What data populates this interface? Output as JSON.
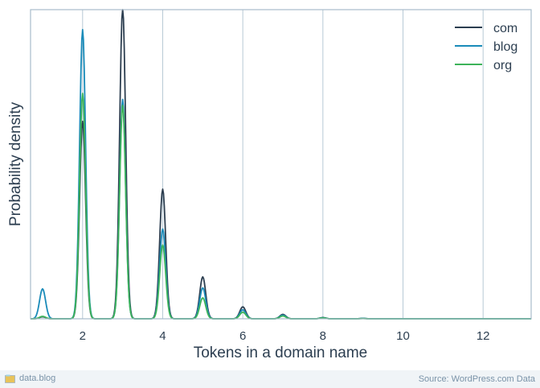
{
  "chart_data": {
    "type": "line",
    "title": "",
    "xlabel": "Tokens in a domain name",
    "ylabel": "Probability density",
    "xlim": [
      0.7,
      13.2
    ],
    "ylim": [
      0,
      1.55
    ],
    "xticks": [
      2,
      4,
      6,
      8,
      10,
      12
    ],
    "grid": "vertical",
    "legend": "top-right",
    "x_resolution": 0.02,
    "peak_width": 0.075,
    "series": [
      {
        "name": "com",
        "color": "#2c3e50",
        "peaks": [
          [
            1,
            0.01
          ],
          [
            2,
            0.99
          ],
          [
            3,
            1.56
          ],
          [
            4,
            0.65
          ],
          [
            5,
            0.21
          ],
          [
            6,
            0.06
          ],
          [
            7,
            0.022
          ],
          [
            8,
            0.006
          ],
          [
            9,
            0.002
          ]
        ]
      },
      {
        "name": "blog",
        "color": "#1a8bb9",
        "peaks": [
          [
            1,
            0.15
          ],
          [
            2,
            1.45
          ],
          [
            3,
            1.1
          ],
          [
            4,
            0.45
          ],
          [
            5,
            0.155
          ],
          [
            6,
            0.045
          ],
          [
            7,
            0.018
          ],
          [
            8,
            0.005
          ],
          [
            9,
            0.002
          ]
        ]
      },
      {
        "name": "org",
        "color": "#3db35a",
        "peaks": [
          [
            1,
            0.012
          ],
          [
            2,
            1.13
          ],
          [
            3,
            1.07
          ],
          [
            4,
            0.37
          ],
          [
            5,
            0.105
          ],
          [
            6,
            0.033
          ],
          [
            7,
            0.014
          ],
          [
            8,
            0.004
          ],
          [
            9,
            0.001
          ]
        ]
      }
    ]
  },
  "footer": {
    "brand": "data.blog",
    "source": "Source: WordPress.com Data"
  }
}
